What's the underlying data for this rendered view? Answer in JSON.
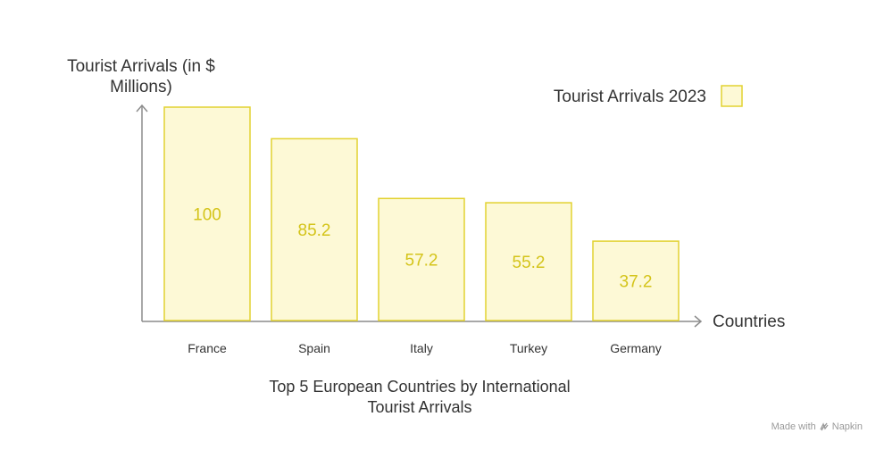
{
  "chart_data": {
    "type": "bar",
    "title_lines": [
      "Top 5 European Countries by International",
      "Tourist Arrivals"
    ],
    "ylabel_lines": [
      "Tourist Arrivals (in $",
      "Millions)"
    ],
    "xlabel": "Countries",
    "categories": [
      "France",
      "Spain",
      "Italy",
      "Turkey",
      "Germany"
    ],
    "series": [
      {
        "name": "Tourist Arrivals 2023",
        "values": [
          100,
          85.2,
          57.2,
          55.2,
          37.2
        ],
        "value_labels": [
          "100",
          "85.2",
          "57.2",
          "55.2",
          "37.2"
        ]
      }
    ],
    "ylim": [
      0,
      100
    ],
    "grid": false,
    "legend_position": "top-right",
    "colors": {
      "bar_fill": "#fdf9d6",
      "bar_stroke": "#e2d230",
      "value_text": "#d4c41a",
      "axis": "#8c8c8c"
    }
  },
  "watermark": {
    "text": "Made with",
    "brand": "Napkin"
  }
}
